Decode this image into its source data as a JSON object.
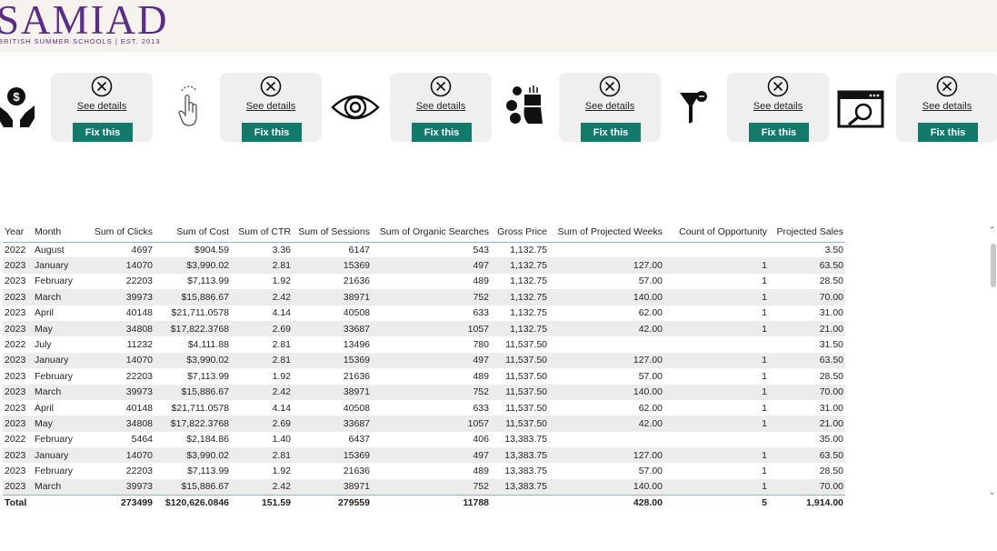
{
  "brand": {
    "name": "SAMIAD",
    "tagline": "BRITISH SUMMER SCHOOLS | EST. 2013"
  },
  "cards": [
    {
      "link": "See details",
      "button": "Fix this"
    },
    {
      "link": "See details",
      "button": "Fix this"
    },
    {
      "link": "See details",
      "button": "Fix this"
    },
    {
      "link": "See details",
      "button": "Fix this"
    },
    {
      "link": "See details",
      "button": "Fix this"
    },
    {
      "link": "See details",
      "button": "Fix this"
    }
  ],
  "icons": [
    "money-hands-icon",
    "touch-gesture-icon",
    "eye-icon",
    "calculator-hand-icon",
    "funnel-icon",
    "browser-search-icon"
  ],
  "colors": {
    "brand": "#5b2d86",
    "button": "#127a6a",
    "header_bg": "#f6f3ef"
  },
  "table": {
    "headers": [
      "Year",
      "Month",
      "Sum of Clicks",
      "Sum of Cost",
      "Sum of CTR",
      "Sum of Sessions",
      "Sum of Organic Searches",
      "Gross Price",
      "Sum of Projected Weeks",
      "Count of Opportunity",
      "Projected Sales"
    ],
    "rows": [
      [
        "2022",
        "August",
        "4697",
        "$904.59",
        "3.36",
        "6147",
        "543",
        "1,132.75",
        "",
        "",
        "3.50"
      ],
      [
        "2023",
        "January",
        "14070",
        "$3,990.02",
        "2.81",
        "15369",
        "497",
        "1,132.75",
        "127.00",
        "1",
        "63.50"
      ],
      [
        "2023",
        "February",
        "22203",
        "$7,113.99",
        "1.92",
        "21636",
        "489",
        "1,132.75",
        "57.00",
        "1",
        "28.50"
      ],
      [
        "2023",
        "March",
        "39973",
        "$15,886.67",
        "2.42",
        "38971",
        "752",
        "1,132.75",
        "140.00",
        "1",
        "70.00"
      ],
      [
        "2023",
        "April",
        "40148",
        "$21,711.0578",
        "4.14",
        "40508",
        "633",
        "1,132.75",
        "62.00",
        "1",
        "31.00"
      ],
      [
        "2023",
        "May",
        "34808",
        "$17,822.3768",
        "2.69",
        "33687",
        "1057",
        "1,132.75",
        "42.00",
        "1",
        "21.00"
      ],
      [
        "2022",
        "July",
        "11232",
        "$4,111.88",
        "2.81",
        "13496",
        "780",
        "11,537.50",
        "",
        "",
        "31.50"
      ],
      [
        "2023",
        "January",
        "14070",
        "$3,990.02",
        "2.81",
        "15369",
        "497",
        "11,537.50",
        "127.00",
        "1",
        "63.50"
      ],
      [
        "2023",
        "February",
        "22203",
        "$7,113.99",
        "1.92",
        "21636",
        "489",
        "11,537.50",
        "57.00",
        "1",
        "28.50"
      ],
      [
        "2023",
        "March",
        "39973",
        "$15,886.67",
        "2.42",
        "38971",
        "752",
        "11,537.50",
        "140.00",
        "1",
        "70.00"
      ],
      [
        "2023",
        "April",
        "40148",
        "$21,711.0578",
        "4.14",
        "40508",
        "633",
        "11,537.50",
        "62.00",
        "1",
        "31.00"
      ],
      [
        "2023",
        "May",
        "34808",
        "$17,822.3768",
        "2.69",
        "33687",
        "1057",
        "11,537.50",
        "42.00",
        "1",
        "21.00"
      ],
      [
        "2022",
        "February",
        "5464",
        "$2,184.86",
        "1.40",
        "6437",
        "406",
        "13,383.75",
        "",
        "",
        "35.00"
      ],
      [
        "2023",
        "January",
        "14070",
        "$3,990.02",
        "2.81",
        "15369",
        "497",
        "13,383.75",
        "127.00",
        "1",
        "63.50"
      ],
      [
        "2023",
        "February",
        "22203",
        "$7,113.99",
        "1.92",
        "21636",
        "489",
        "13,383.75",
        "57.00",
        "1",
        "28.50"
      ],
      [
        "2023",
        "March",
        "39973",
        "$15,886.67",
        "2.42",
        "38971",
        "752",
        "13,383.75",
        "140.00",
        "1",
        "70.00"
      ]
    ],
    "total": [
      "Total",
      "",
      "273499",
      "$120,626.0846",
      "151.59",
      "279559",
      "11788",
      "",
      "428.00",
      "5",
      "1,914.00"
    ]
  }
}
